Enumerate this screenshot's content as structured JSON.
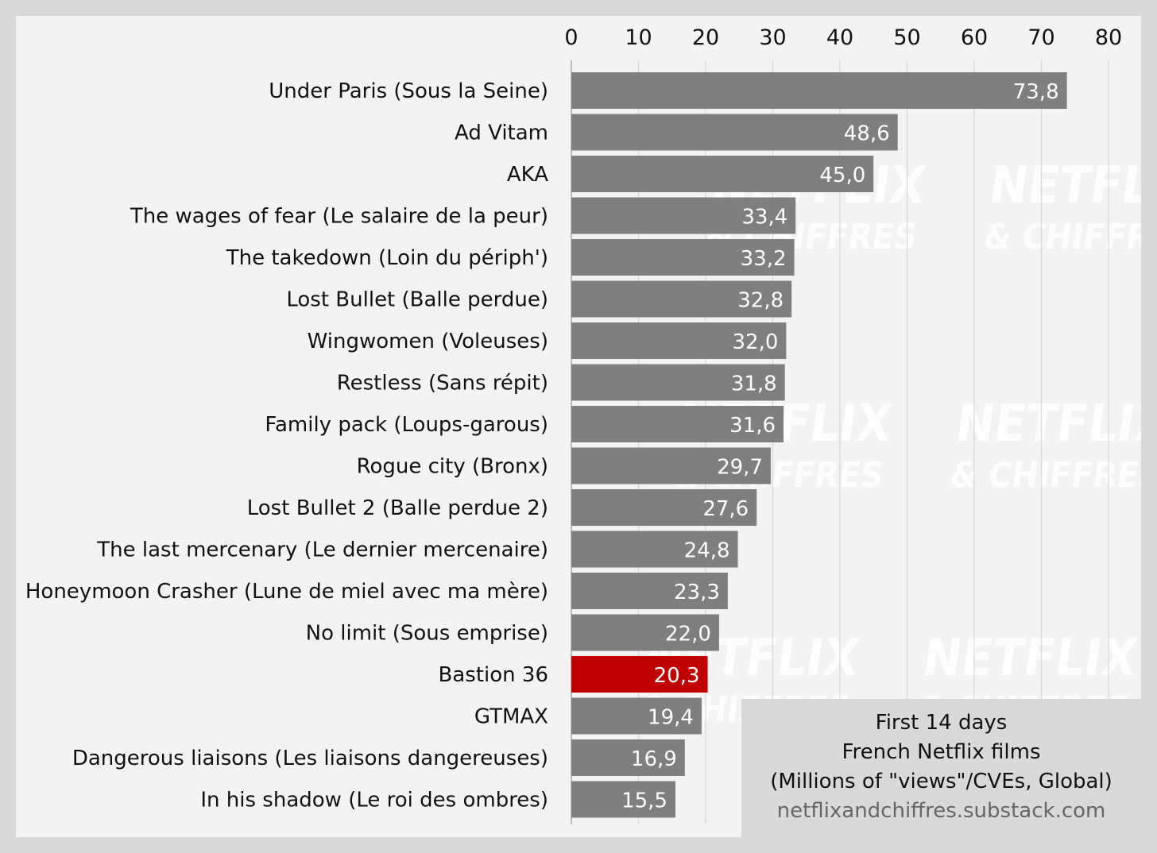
{
  "chart_data": {
    "type": "bar",
    "orientation": "horizontal",
    "categories": [
      "Under Paris (Sous la Seine)",
      "Ad Vitam",
      "AKA",
      "The wages of fear (Le salaire de la peur)",
      "The takedown (Loin du périph')",
      "Lost Bullet (Balle perdue)",
      "Wingwomen (Voleuses)",
      "Restless (Sans répit)",
      "Family pack (Loups-garous)",
      "Rogue city (Bronx)",
      "Lost Bullet 2 (Balle perdue 2)",
      "The last mercenary (Le dernier mercenaire)",
      "Honeymoon Crasher (Lune de miel avec ma mère)",
      "No limit (Sous emprise)",
      "Bastion 36",
      "GTMAX",
      "Dangerous liaisons (Les liaisons dangereuses)",
      "In his shadow (Le roi des ombres)"
    ],
    "values": [
      73.8,
      48.6,
      45.0,
      33.4,
      33.2,
      32.8,
      32.0,
      31.8,
      31.6,
      29.7,
      27.6,
      24.8,
      23.3,
      22.0,
      20.3,
      19.4,
      16.9,
      15.5
    ],
    "value_labels": [
      "73,8",
      "48,6",
      "45,0",
      "33,4",
      "33,2",
      "32,8",
      "32,0",
      "31,8",
      "31,6",
      "29,7",
      "27,6",
      "24,8",
      "23,3",
      "22,0",
      "20,3",
      "19,4",
      "16,9",
      "15,5"
    ],
    "highlight_category": "Bastion 36",
    "xlim": [
      0,
      80
    ],
    "x_ticks": [
      0,
      10,
      20,
      30,
      40,
      50,
      60,
      70,
      80
    ],
    "x_axis_position": "top",
    "grid": true,
    "colors": {
      "bar": "#7f7f7f",
      "highlight": "#c00000",
      "grid": "#d6d6d6",
      "background": "#f3f3f3",
      "frame": "#d9d9d9"
    },
    "title_lines": [
      "First 14 days",
      "French Netflix films",
      "(Millions of \"views\"/CVEs, Global)"
    ],
    "source": "netflixandchiffres.substack.com",
    "legend_placement": "none"
  },
  "watermark": {
    "line1": "NETFLIX",
    "line2": "& CHIFFRES"
  }
}
